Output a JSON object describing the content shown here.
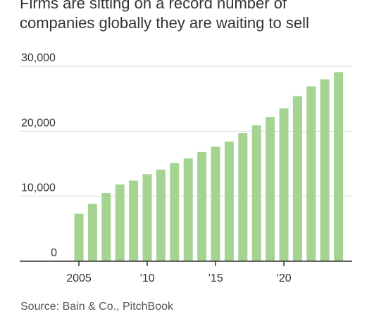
{
  "title": "Firms are sitting on a record number of companies globally they are waiting to sell",
  "source": "Source: Bain & Co., PitchBook",
  "colors": {
    "bar": "#a5d492",
    "grid": "#d8d8d8",
    "axis": "#333333",
    "text": "#333333"
  },
  "chart_data": {
    "type": "bar",
    "title": "Firms are sitting on a record number of companies globally they are waiting to sell",
    "xlabel": "",
    "ylabel": "",
    "ylim": [
      0,
      30000
    ],
    "grid": true,
    "y_ticks": [
      {
        "value": 0,
        "label": "0"
      },
      {
        "value": 10000,
        "label": "10,000"
      },
      {
        "value": 20000,
        "label": "20,000"
      },
      {
        "value": 30000,
        "label": "30,000"
      }
    ],
    "x_ticks": [
      {
        "year": 2005,
        "label": "2005"
      },
      {
        "year": 2010,
        "label": "’10"
      },
      {
        "year": 2015,
        "label": "’15"
      },
      {
        "year": 2020,
        "label": "’20"
      }
    ],
    "categories": [
      2005,
      2006,
      2007,
      2008,
      2009,
      2010,
      2011,
      2012,
      2013,
      2014,
      2015,
      2016,
      2017,
      2018,
      2019,
      2020,
      2021,
      2022,
      2023,
      2024
    ],
    "values": [
      7300,
      8800,
      10500,
      11800,
      12400,
      13400,
      14100,
      15100,
      15800,
      16800,
      17600,
      18400,
      19700,
      20900,
      22200,
      23500,
      25400,
      26900,
      28000,
      29100
    ]
  }
}
